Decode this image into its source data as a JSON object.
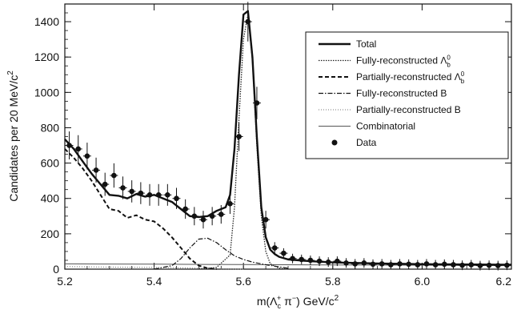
{
  "chart_data": {
    "type": "line",
    "xlabel": "m(Λc+ π−) GeV/c²",
    "ylabel": "Candidates per 20 MeV/c²",
    "xlim": [
      5.2,
      6.2
    ],
    "ylim": [
      0,
      1500
    ],
    "xticks": [
      "5.2",
      "5.4",
      "5.6",
      "5.8",
      "6.0",
      "6.2"
    ],
    "xtick_values": [
      5.2,
      5.4,
      5.6,
      5.8,
      6.0,
      6.2
    ],
    "yticks": [
      "0",
      "200",
      "400",
      "600",
      "800",
      "1000",
      "1200",
      "1400"
    ],
    "ytick_values": [
      0,
      200,
      400,
      600,
      800,
      1000,
      1200,
      1400
    ],
    "legend_position": "top-right",
    "series": [
      {
        "name": "Total",
        "style": "solid-thick",
        "x": [
          5.2,
          5.22,
          5.24,
          5.26,
          5.28,
          5.3,
          5.32,
          5.34,
          5.36,
          5.38,
          5.4,
          5.42,
          5.44,
          5.46,
          5.48,
          5.5,
          5.52,
          5.54,
          5.56,
          5.57,
          5.58,
          5.59,
          5.6,
          5.61,
          5.62,
          5.63,
          5.64,
          5.65,
          5.66,
          5.67,
          5.68,
          5.7,
          5.75,
          5.8,
          5.9,
          6.0,
          6.2
        ],
        "y": [
          735,
          680,
          610,
          540,
          480,
          420,
          415,
          400,
          425,
          410,
          420,
          400,
          380,
          340,
          300,
          295,
          300,
          330,
          350,
          420,
          680,
          1100,
          1440,
          1460,
          1200,
          750,
          350,
          180,
          110,
          85,
          70,
          55,
          45,
          38,
          32,
          28,
          25
        ]
      },
      {
        "name": "Fully-reconstructed Λb0",
        "style": "dotted",
        "x": [
          5.5,
          5.54,
          5.57,
          5.58,
          5.59,
          5.6,
          5.61,
          5.62,
          5.63,
          5.64,
          5.65,
          5.66,
          5.68,
          5.7
        ],
        "y": [
          0,
          10,
          80,
          350,
          850,
          1300,
          1440,
          1180,
          700,
          300,
          100,
          30,
          5,
          0
        ]
      },
      {
        "name": "Partially-reconstructed Λb0",
        "style": "dashed",
        "x": [
          5.2,
          5.22,
          5.24,
          5.26,
          5.28,
          5.3,
          5.32,
          5.34,
          5.36,
          5.38,
          5.4,
          5.42,
          5.44,
          5.46,
          5.48,
          5.5,
          5.52,
          5.54
        ],
        "y": [
          680,
          630,
          570,
          500,
          420,
          340,
          330,
          290,
          305,
          280,
          270,
          230,
          180,
          120,
          60,
          20,
          5,
          0
        ]
      },
      {
        "name": "Fully-reconstructed B",
        "style": "dash-dot",
        "x": [
          5.4,
          5.44,
          5.46,
          5.48,
          5.5,
          5.52,
          5.54,
          5.56,
          5.58,
          5.6,
          5.62,
          5.65,
          5.7
        ],
        "y": [
          0,
          20,
          60,
          120,
          170,
          175,
          150,
          110,
          75,
          55,
          40,
          25,
          5
        ]
      },
      {
        "name": "Partially-reconstructed B",
        "style": "fine-dotted",
        "x": [
          5.2,
          5.3,
          5.4,
          5.45,
          5.5,
          5.55,
          5.6
        ],
        "y": [
          15,
          12,
          10,
          8,
          5,
          2,
          0
        ]
      },
      {
        "name": "Combinatorial",
        "style": "solid-thin",
        "x": [
          5.2,
          5.4,
          5.6,
          5.8,
          6.0,
          6.2
        ],
        "y": [
          30,
          28,
          26,
          24,
          22,
          20
        ]
      },
      {
        "name": "Data",
        "style": "points",
        "x": [
          5.21,
          5.23,
          5.25,
          5.27,
          5.29,
          5.31,
          5.33,
          5.35,
          5.37,
          5.39,
          5.41,
          5.43,
          5.45,
          5.47,
          5.49,
          5.51,
          5.53,
          5.55,
          5.57,
          5.59,
          5.61,
          5.63,
          5.65,
          5.67,
          5.69,
          5.71,
          5.73,
          5.75,
          5.77,
          5.79,
          5.81,
          5.83,
          5.85,
          5.87,
          5.89,
          5.91,
          5.93,
          5.95,
          5.97,
          5.99,
          6.01,
          6.03,
          6.05,
          6.07,
          6.09,
          6.11,
          6.13,
          6.15,
          6.17,
          6.19
        ],
        "y": [
          700,
          680,
          640,
          560,
          480,
          530,
          460,
          440,
          430,
          420,
          420,
          420,
          400,
          340,
          300,
          280,
          300,
          310,
          370,
          750,
          1400,
          940,
          280,
          120,
          90,
          60,
          55,
          50,
          45,
          40,
          45,
          35,
          30,
          35,
          28,
          30,
          25,
          30,
          28,
          25,
          30,
          25,
          28,
          25,
          22,
          25,
          20,
          22,
          20,
          22
        ]
      }
    ]
  },
  "legend": {
    "items": [
      {
        "label": "Total",
        "sup": "",
        "sub": ""
      },
      {
        "label": "Fully-reconstructed Λ",
        "sup": "0",
        "sub": "b"
      },
      {
        "label": "Partially-reconstructed Λ",
        "sup": "0",
        "sub": "b"
      },
      {
        "label": "Fully-reconstructed B",
        "sup": "",
        "sub": ""
      },
      {
        "label": "Partially-reconstructed B",
        "sup": "",
        "sub": ""
      },
      {
        "label": "Combinatorial",
        "sup": "",
        "sub": ""
      },
      {
        "label": "Data",
        "sup": "",
        "sub": ""
      }
    ]
  },
  "axis_text": {
    "ylabel_main": "Candidates per 20 MeV/c",
    "ylabel_sup": "2",
    "xlabel_m": "m(Λ",
    "xlabel_sub": "c",
    "xlabel_sup": "+",
    "xlabel_pi": " π",
    "xlabel_pisup": "−",
    "xlabel_close": ") GeV/c",
    "xlabel_sup2": "2"
  }
}
